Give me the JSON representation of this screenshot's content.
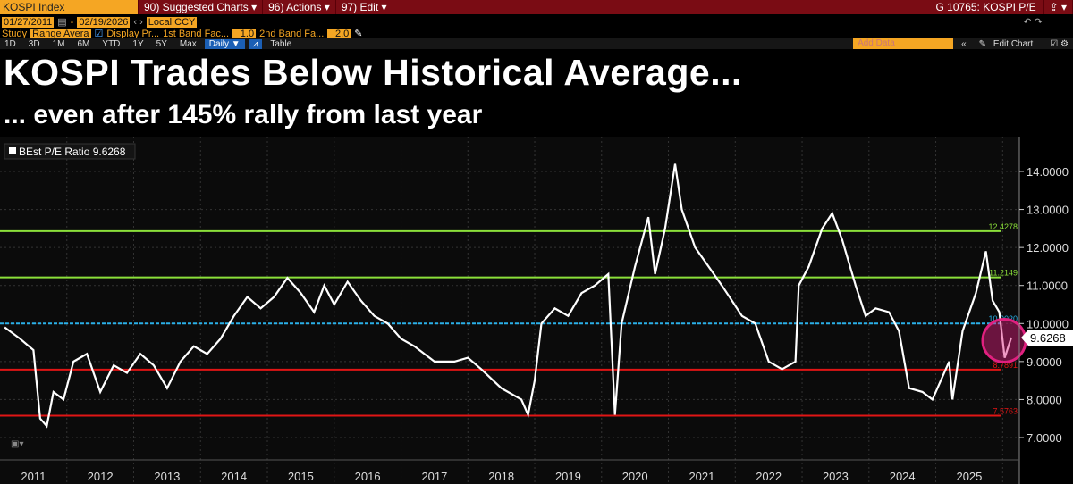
{
  "header": {
    "ticker": "KOSPI Index",
    "menus": [
      "90) Suggested Charts ▾",
      "96) Actions ▾",
      "97) Edit ▾"
    ],
    "page_id": "G 10765: KOSPI P/E"
  },
  "controls": {
    "start_date": "01/27/2011",
    "end_date": "02/19/2026",
    "currency": "Local CCY",
    "study_label": "Study",
    "study": "Range Avera",
    "display": "Display Pr...",
    "band1_label": "1st Band Fac...",
    "band1": "1.0",
    "band2_label": "2nd Band Fa...",
    "band2": "2.0",
    "periods": [
      "1D",
      "3D",
      "1M",
      "6M",
      "YTD",
      "1Y",
      "5Y",
      "Max"
    ],
    "frequency": "Daily ▼",
    "table": "Table",
    "add_data": "Add Data",
    "edit_chart": "Edit Chart"
  },
  "headline": "KOSPI Trades Below Historical Average...",
  "subheadline": "... even after 145% rally from last year",
  "chart_data": {
    "type": "line",
    "legend": "BEst P/E Ratio 9.6268",
    "legend_position": "top-left",
    "last_value": "9.6268",
    "y_ticks": [
      "7.0000",
      "8.0000",
      "9.0000",
      "10.0000",
      "11.0000",
      "12.0000",
      "13.0000",
      "14.0000"
    ],
    "ylim": [
      6.6,
      14.9
    ],
    "x_ticks": [
      "2011",
      "2012",
      "2013",
      "2014",
      "2015",
      "2016",
      "2017",
      "2018",
      "2019",
      "2020",
      "2021",
      "2022",
      "2023",
      "2024",
      "2025"
    ],
    "xlim": [
      2011.0,
      2026.25
    ],
    "grid": true,
    "colors": {
      "series": "#ffffff",
      "avg": "#2ab0e8",
      "band1": "#8be03a",
      "band2": "#e01515",
      "highlight": "#e0207f"
    },
    "bands": [
      {
        "label": "12.4278",
        "value": 12.4278,
        "kind": "band1"
      },
      {
        "label": "11.2149",
        "value": 11.2149,
        "kind": "band1"
      },
      {
        "label": "10.0020",
        "value": 10.002,
        "kind": "avg"
      },
      {
        "label": "8.7891",
        "value": 8.7891,
        "kind": "band2"
      },
      {
        "label": "7.5763",
        "value": 7.5763,
        "kind": "band2"
      }
    ],
    "series": [
      {
        "x": [
          2011.07,
          2011.3,
          2011.5,
          2011.6,
          2011.7,
          2011.8,
          2011.95,
          2012.1,
          2012.3,
          2012.5,
          2012.7,
          2012.9,
          2013.1,
          2013.3,
          2013.5,
          2013.7,
          2013.9,
          2014.1,
          2014.3,
          2014.5,
          2014.7,
          2014.9,
          2015.1,
          2015.3,
          2015.5,
          2015.7,
          2015.85,
          2016.0,
          2016.2,
          2016.4,
          2016.6,
          2016.8,
          2017.0,
          2017.2,
          2017.5,
          2017.8,
          2018.0,
          2018.2,
          2018.5,
          2018.8,
          2018.9,
          2019.0,
          2019.1,
          2019.3,
          2019.5,
          2019.7,
          2019.9,
          2020.1,
          2020.2,
          2020.3,
          2020.5,
          2020.7,
          2020.8,
          2020.95,
          2021.1,
          2021.2,
          2021.4,
          2021.6,
          2021.8,
          2021.95,
          2022.1,
          2022.3,
          2022.5,
          2022.7,
          2022.9,
          2022.95,
          2023.1,
          2023.3,
          2023.45,
          2023.6,
          2023.8,
          2023.95,
          2024.1,
          2024.3,
          2024.45,
          2024.6,
          2024.8,
          2024.95,
          2025.1,
          2025.2,
          2025.25,
          2025.4,
          2025.6,
          2025.75,
          2025.85,
          2025.95,
          2026.03,
          2026.13
        ],
        "y": [
          9.9,
          9.6,
          9.3,
          7.5,
          7.3,
          8.2,
          8.0,
          9.0,
          9.2,
          8.2,
          8.9,
          8.7,
          9.2,
          8.9,
          8.3,
          9.0,
          9.4,
          9.2,
          9.6,
          10.2,
          10.7,
          10.4,
          10.7,
          11.2,
          10.8,
          10.3,
          11.0,
          10.5,
          11.1,
          10.6,
          10.2,
          10.0,
          9.6,
          9.4,
          9.0,
          9.0,
          9.1,
          8.8,
          8.3,
          8.0,
          7.6,
          8.5,
          10.0,
          10.4,
          10.2,
          10.8,
          11.0,
          11.3,
          7.6,
          10.0,
          11.5,
          12.8,
          11.3,
          12.5,
          14.2,
          13.0,
          12.0,
          11.5,
          11.0,
          10.6,
          10.2,
          10.0,
          9.0,
          8.8,
          9.0,
          11.0,
          11.5,
          12.5,
          12.9,
          12.2,
          11.0,
          10.2,
          10.4,
          10.3,
          9.8,
          8.3,
          8.2,
          8.0,
          8.6,
          9.0,
          8.0,
          9.8,
          10.8,
          11.9,
          10.6,
          10.3,
          9.1,
          9.63
        ]
      }
    ]
  }
}
